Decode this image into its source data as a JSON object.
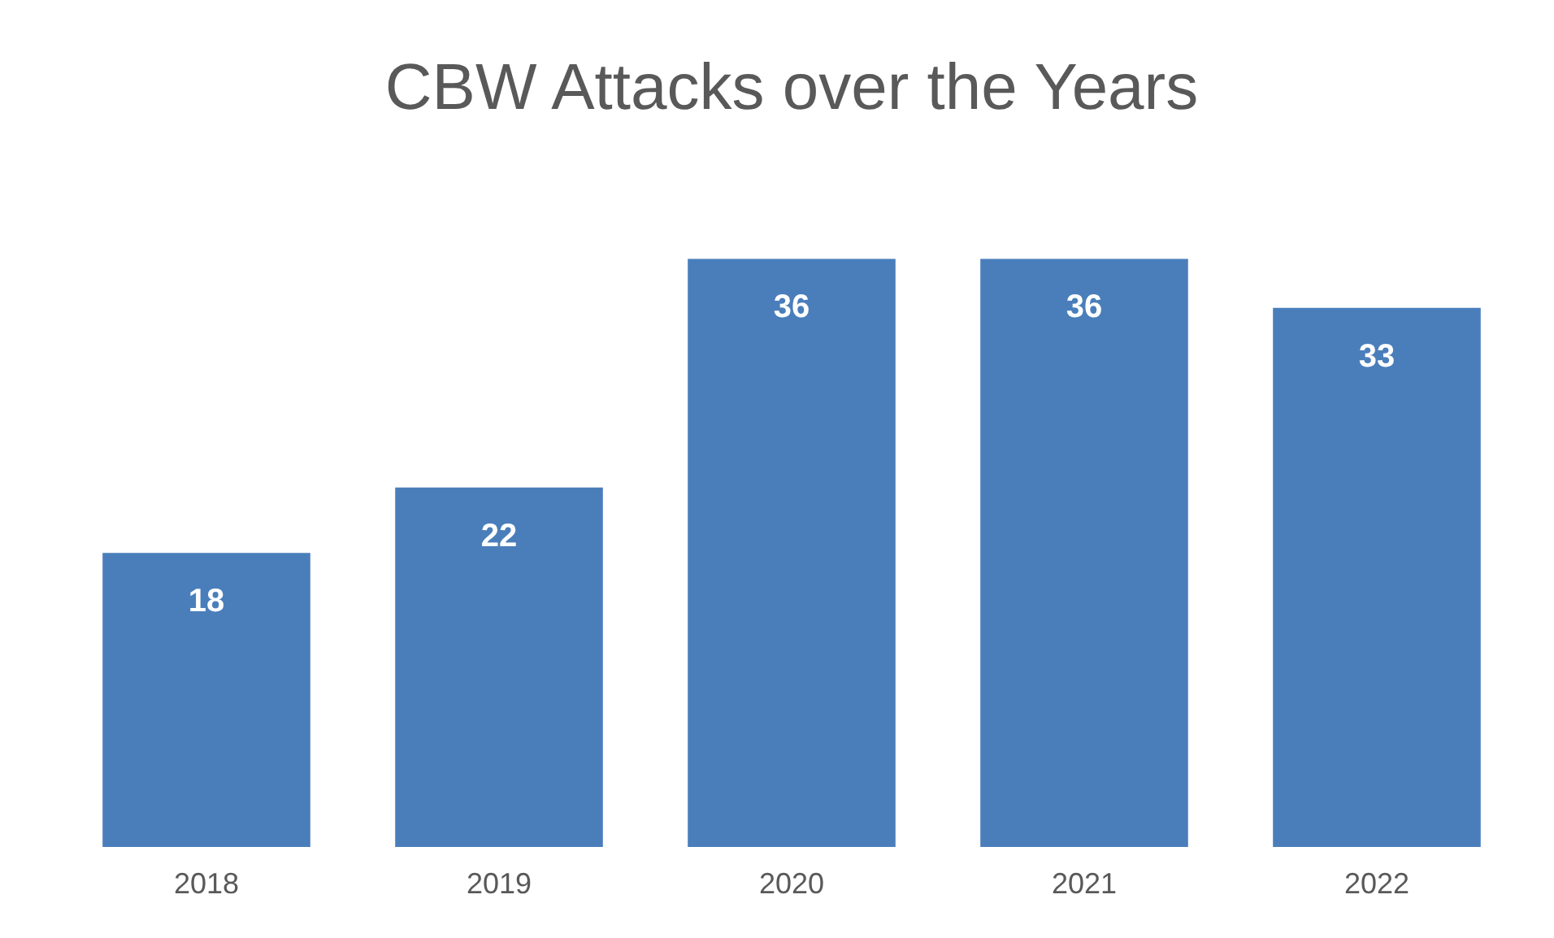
{
  "chart_data": {
    "type": "bar",
    "title": "CBW Attacks over the Years",
    "categories": [
      "2018",
      "2019",
      "2020",
      "2021",
      "2022"
    ],
    "values": [
      18,
      22,
      36,
      36,
      33
    ],
    "color": "#4a7ebb",
    "data_labels": true
  }
}
